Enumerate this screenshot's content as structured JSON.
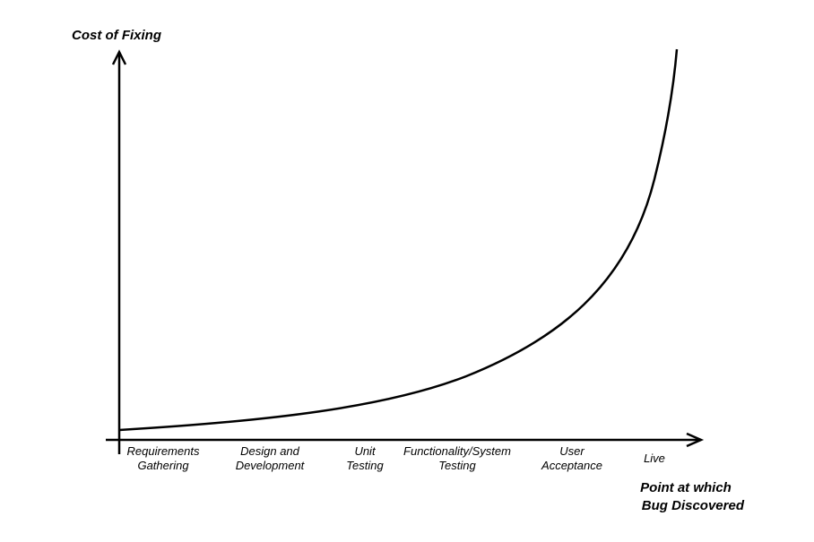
{
  "y_axis_label": "Cost of Fixing",
  "x_axis_label": [
    "Point at which",
    "Bug Discovered"
  ],
  "stages": [
    [
      "Requirements",
      "Gathering"
    ],
    [
      "Design and",
      "Development"
    ],
    [
      "Unit",
      "Testing"
    ],
    [
      "Functionality/System",
      "Testing"
    ],
    [
      "User",
      "Acceptance"
    ],
    [
      "Live"
    ]
  ]
}
